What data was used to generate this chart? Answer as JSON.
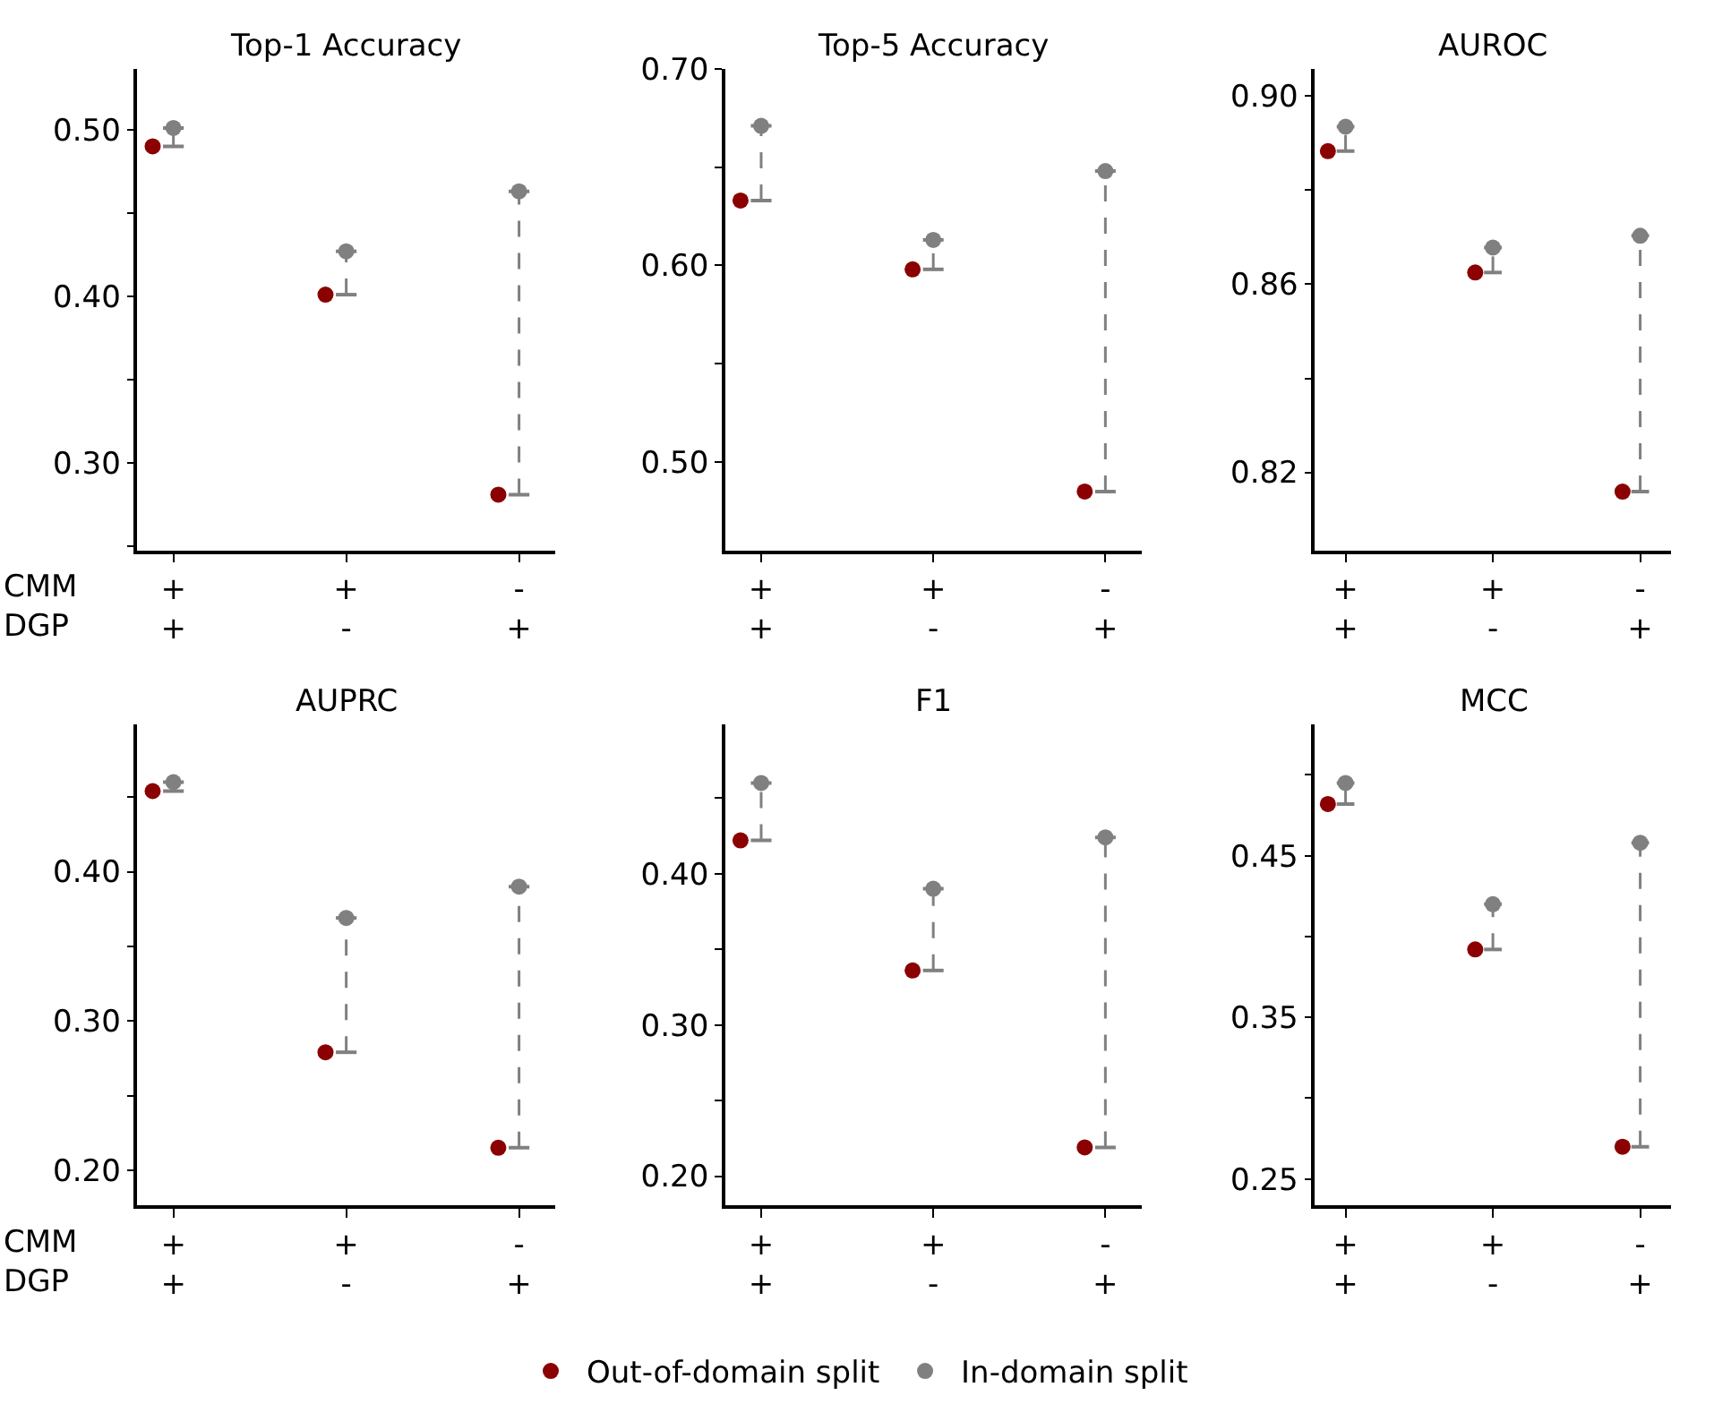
{
  "chart_data": [
    {
      "type": "scatter",
      "title": "Top-1 Accuracy",
      "categories": [
        "+\n+",
        "+\n-",
        "-\n+"
      ],
      "marker": "circle",
      "line_style": "dashed",
      "legend": "bottom",
      "ylim": [
        0.2475,
        0.5365
      ],
      "yticks": [
        {
          "value": 0.25,
          "label": null
        },
        {
          "value": 0.3,
          "label": "0.30"
        },
        {
          "value": 0.35,
          "label": null
        },
        {
          "value": 0.4,
          "label": "0.40"
        },
        {
          "value": 0.45,
          "label": null
        },
        {
          "value": 0.5,
          "label": "0.50"
        }
      ],
      "annotations": [
        "CMM",
        "DGP"
      ],
      "series": [
        {
          "name": "Out-of-domain split",
          "color": "#8b0000",
          "values": [
            0.49,
            0.401,
            0.281
          ]
        },
        {
          "name": "In-domain split",
          "color": "#808080",
          "values": [
            0.501,
            0.427,
            0.463
          ],
          "errors": [
            [
              0.49,
              0.501
            ],
            [
              0.401,
              0.427
            ],
            [
              0.281,
              0.463
            ]
          ]
        }
      ]
    },
    {
      "type": "scatter",
      "title": "Top-5 Accuracy",
      "categories": [
        "+\n+",
        "+\n-",
        "-\n+"
      ],
      "marker": "circle",
      "line_style": "dashed",
      "ylim": [
        0.455,
        0.7
      ],
      "yticks": [
        {
          "value": 0.5,
          "label": "0.50"
        },
        {
          "value": 0.55,
          "label": null
        },
        {
          "value": 0.6,
          "label": "0.60"
        },
        {
          "value": 0.65,
          "label": null
        },
        {
          "value": 0.7,
          "label": "0.70"
        }
      ],
      "series": [
        {
          "color": "#8b0000",
          "values": [
            0.633,
            0.598,
            0.485
          ]
        },
        {
          "color": "#808080",
          "values": [
            0.671,
            0.613,
            0.648
          ],
          "errors": [
            [
              0.633,
              0.671
            ],
            [
              0.598,
              0.613
            ],
            [
              0.485,
              0.648
            ]
          ]
        }
      ]
    },
    {
      "type": "scatter",
      "title": "AUROC",
      "categories": [
        "+\n+",
        "+\n-",
        "-\n+"
      ],
      "marker": "circle",
      "line_style": "dashed",
      "ylim": [
        0.8034,
        0.9058
      ],
      "yticks": [
        {
          "value": 0.82,
          "label": "0.82"
        },
        {
          "value": 0.84,
          "label": null
        },
        {
          "value": 0.86,
          "label": "0.86"
        },
        {
          "value": 0.88,
          "label": null
        },
        {
          "value": 0.9,
          "label": "0.90"
        }
      ],
      "series": [
        {
          "color": "#8b0000",
          "values": [
            0.8883,
            0.8625,
            0.8159
          ]
        },
        {
          "color": "#808080",
          "values": [
            0.8935,
            0.8678,
            0.8703
          ],
          "errors": [
            [
              0.8883,
              0.8935
            ],
            [
              0.8625,
              0.8678
            ],
            [
              0.8159,
              0.8703
            ]
          ]
        }
      ]
    },
    {
      "type": "scatter",
      "title": "AUPRC",
      "categories": [
        "+\n+",
        "+\n-",
        "-\n+"
      ],
      "marker": "circle",
      "line_style": "dashed",
      "ylim": [
        0.1763,
        0.499
      ],
      "yticks": [
        {
          "value": 0.2,
          "label": "0.20"
        },
        {
          "value": 0.25,
          "label": null
        },
        {
          "value": 0.3,
          "label": "0.30"
        },
        {
          "value": 0.35,
          "label": null
        },
        {
          "value": 0.4,
          "label": "0.40"
        },
        {
          "value": 0.45,
          "label": null
        }
      ],
      "annotations": [
        "CMM",
        "DGP"
      ],
      "series": [
        {
          "color": "#8b0000",
          "values": [
            0.454,
            0.279,
            0.215
          ]
        },
        {
          "color": "#808080",
          "values": [
            0.46,
            0.369,
            0.39
          ],
          "errors": [
            [
              0.454,
              0.46
            ],
            [
              0.279,
              0.369
            ],
            [
              0.215,
              0.39
            ]
          ]
        }
      ]
    },
    {
      "type": "scatter",
      "title": "F1",
      "categories": [
        "+\n+",
        "+\n-",
        "-\n+"
      ],
      "marker": "circle",
      "line_style": "dashed",
      "ylim": [
        0.1806,
        0.499
      ],
      "yticks": [
        {
          "value": 0.2,
          "label": "0.20"
        },
        {
          "value": 0.25,
          "label": null
        },
        {
          "value": 0.3,
          "label": "0.30"
        },
        {
          "value": 0.35,
          "label": null
        },
        {
          "value": 0.4,
          "label": "0.40"
        },
        {
          "value": 0.45,
          "label": null
        }
      ],
      "series": [
        {
          "color": "#8b0000",
          "values": [
            0.422,
            0.336,
            0.219
          ]
        },
        {
          "color": "#808080",
          "values": [
            0.46,
            0.39,
            0.424
          ],
          "errors": [
            [
              0.422,
              0.46
            ],
            [
              0.336,
              0.39
            ],
            [
              0.219,
              0.424
            ]
          ]
        }
      ]
    },
    {
      "type": "scatter",
      "title": "MCC",
      "categories": [
        "+\n+",
        "+\n-",
        "-\n+"
      ],
      "marker": "circle",
      "line_style": "dashed",
      "ylim": [
        0.2336,
        0.5315
      ],
      "yticks": [
        {
          "value": 0.25,
          "label": "0.25"
        },
        {
          "value": 0.3,
          "label": null
        },
        {
          "value": 0.35,
          "label": "0.35"
        },
        {
          "value": 0.4,
          "label": null
        },
        {
          "value": 0.45,
          "label": "0.45"
        },
        {
          "value": 0.5,
          "label": null
        }
      ],
      "series": [
        {
          "color": "#8b0000",
          "values": [
            0.482,
            0.392,
            0.27
          ]
        },
        {
          "color": "#808080",
          "values": [
            0.495,
            0.42,
            0.458
          ],
          "errors": [
            [
              0.482,
              0.495
            ],
            [
              0.392,
              0.42
            ],
            [
              0.27,
              0.458
            ]
          ]
        }
      ]
    }
  ]
}
